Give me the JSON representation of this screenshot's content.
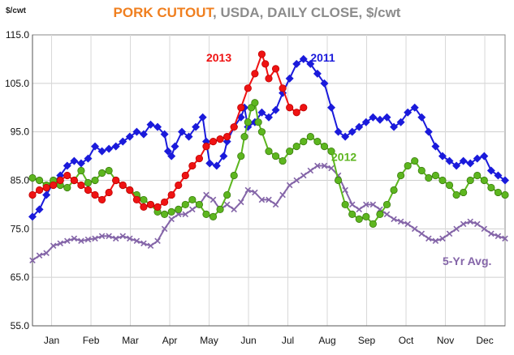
{
  "header": {
    "title_accent": "PORK CUTOUT",
    "title_rest": ", USDA, DAILY CLOSE, $/cwt",
    "unit": "$/cwt"
  },
  "chart_data": {
    "type": "line",
    "title": "PORK CUTOUT, USDA, DAILY CLOSE, $/cwt",
    "ylabel": "$/cwt",
    "xlabel": "",
    "ylim": [
      55.0,
      115.0
    ],
    "y_ticks": [
      "55.0",
      "65.0",
      "75.0",
      "85.0",
      "95.0",
      "105.0",
      "115.0"
    ],
    "x_ticks": [
      "Jan",
      "Feb",
      "Mar",
      "Apr",
      "May",
      "Jun",
      "Jul",
      "Aug",
      "Sep",
      "Oct",
      "Nov",
      "Dec"
    ],
    "grid": true,
    "series": [
      {
        "name": "2011",
        "color": "#1a1adb",
        "marker": "diamond",
        "label_at": [
          8.0,
          109.5
        ],
        "points": [
          [
            0.0,
            77.5
          ],
          [
            0.2,
            79
          ],
          [
            0.4,
            82
          ],
          [
            0.6,
            84.5
          ],
          [
            0.8,
            86
          ],
          [
            1.0,
            88
          ],
          [
            1.2,
            89
          ],
          [
            1.4,
            88.5
          ],
          [
            1.6,
            89.5
          ],
          [
            1.8,
            92
          ],
          [
            2.0,
            91
          ],
          [
            2.2,
            91.5
          ],
          [
            2.4,
            92
          ],
          [
            2.6,
            93
          ],
          [
            2.8,
            94
          ],
          [
            3.0,
            95
          ],
          [
            3.2,
            94.5
          ],
          [
            3.4,
            96.5
          ],
          [
            3.6,
            96
          ],
          [
            3.8,
            94.5
          ],
          [
            3.9,
            91
          ],
          [
            4.0,
            90
          ],
          [
            4.1,
            92
          ],
          [
            4.3,
            95
          ],
          [
            4.5,
            94
          ],
          [
            4.7,
            96
          ],
          [
            4.9,
            98
          ],
          [
            5.0,
            93
          ],
          [
            5.1,
            88.5
          ],
          [
            5.3,
            88
          ],
          [
            5.5,
            90
          ],
          [
            5.6,
            93
          ],
          [
            5.8,
            96
          ],
          [
            6.0,
            98
          ],
          [
            6.1,
            100
          ],
          [
            6.2,
            96
          ],
          [
            6.4,
            97
          ],
          [
            6.6,
            99
          ],
          [
            6.8,
            98
          ],
          [
            7.0,
            99.5
          ],
          [
            7.2,
            103
          ],
          [
            7.4,
            106
          ],
          [
            7.6,
            109
          ],
          [
            7.8,
            110
          ],
          [
            8.0,
            109
          ],
          [
            8.2,
            107
          ],
          [
            8.4,
            105
          ],
          [
            8.6,
            100
          ],
          [
            8.8,
            95
          ],
          [
            9.0,
            94
          ],
          [
            9.2,
            95
          ],
          [
            9.4,
            96
          ],
          [
            9.6,
            97
          ],
          [
            9.8,
            98
          ],
          [
            10.0,
            97.5
          ],
          [
            10.2,
            98
          ],
          [
            10.4,
            96
          ],
          [
            10.6,
            97
          ],
          [
            10.8,
            99
          ],
          [
            11.0,
            100
          ],
          [
            11.2,
            98
          ],
          [
            11.4,
            95
          ],
          [
            11.6,
            92
          ],
          [
            11.8,
            90
          ],
          [
            12.0,
            89
          ],
          [
            12.2,
            88
          ],
          [
            12.4,
            89
          ],
          [
            12.6,
            88.5
          ],
          [
            12.8,
            89.5
          ],
          [
            13.0,
            90
          ],
          [
            13.2,
            87
          ],
          [
            13.4,
            86
          ],
          [
            13.6,
            85
          ]
        ]
      },
      {
        "name": "2012",
        "color": "#5db61f",
        "marker": "circle",
        "label_at": [
          8.6,
          89.0
        ],
        "points": [
          [
            0.0,
            85.5
          ],
          [
            0.2,
            85
          ],
          [
            0.4,
            84
          ],
          [
            0.6,
            85
          ],
          [
            0.8,
            84
          ],
          [
            1.0,
            83.5
          ],
          [
            1.2,
            85
          ],
          [
            1.4,
            87
          ],
          [
            1.6,
            84.5
          ],
          [
            1.8,
            85
          ],
          [
            2.0,
            86.5
          ],
          [
            2.2,
            87
          ],
          [
            2.4,
            85
          ],
          [
            2.6,
            84
          ],
          [
            2.8,
            83
          ],
          [
            3.0,
            82
          ],
          [
            3.2,
            81
          ],
          [
            3.4,
            80
          ],
          [
            3.6,
            78.5
          ],
          [
            3.8,
            78
          ],
          [
            4.0,
            78.5
          ],
          [
            4.2,
            79
          ],
          [
            4.4,
            80
          ],
          [
            4.6,
            81
          ],
          [
            4.8,
            80
          ],
          [
            5.0,
            78
          ],
          [
            5.2,
            77.5
          ],
          [
            5.4,
            79
          ],
          [
            5.6,
            82
          ],
          [
            5.8,
            86
          ],
          [
            6.0,
            90
          ],
          [
            6.1,
            94
          ],
          [
            6.2,
            97
          ],
          [
            6.3,
            100
          ],
          [
            6.4,
            101
          ],
          [
            6.5,
            97
          ],
          [
            6.6,
            95
          ],
          [
            6.8,
            91
          ],
          [
            7.0,
            90
          ],
          [
            7.2,
            89
          ],
          [
            7.4,
            91
          ],
          [
            7.6,
            92
          ],
          [
            7.8,
            93
          ],
          [
            8.0,
            94
          ],
          [
            8.2,
            93
          ],
          [
            8.4,
            92
          ],
          [
            8.6,
            91
          ],
          [
            8.8,
            85
          ],
          [
            9.0,
            80
          ],
          [
            9.2,
            78
          ],
          [
            9.4,
            77
          ],
          [
            9.6,
            77.5
          ],
          [
            9.8,
            76
          ],
          [
            10.0,
            78
          ],
          [
            10.2,
            80
          ],
          [
            10.4,
            83
          ],
          [
            10.6,
            86
          ],
          [
            10.8,
            88
          ],
          [
            11.0,
            89
          ],
          [
            11.2,
            87
          ],
          [
            11.4,
            85.5
          ],
          [
            11.6,
            86
          ],
          [
            11.8,
            85
          ],
          [
            12.0,
            84
          ],
          [
            12.2,
            82
          ],
          [
            12.4,
            82.5
          ],
          [
            12.6,
            85
          ],
          [
            12.8,
            86
          ],
          [
            13.0,
            85
          ],
          [
            13.2,
            83.5
          ],
          [
            13.4,
            82.5
          ],
          [
            13.6,
            82
          ]
        ]
      },
      {
        "name": "2013",
        "color": "#ef1313",
        "marker": "circle",
        "label_at": [
          5.0,
          109.5
        ],
        "points": [
          [
            0.0,
            82
          ],
          [
            0.2,
            83
          ],
          [
            0.4,
            83.5
          ],
          [
            0.6,
            84
          ],
          [
            0.8,
            85
          ],
          [
            1.0,
            86
          ],
          [
            1.2,
            85
          ],
          [
            1.4,
            84
          ],
          [
            1.6,
            83
          ],
          [
            1.8,
            82
          ],
          [
            2.0,
            81
          ],
          [
            2.2,
            82.5
          ],
          [
            2.4,
            85
          ],
          [
            2.6,
            84
          ],
          [
            2.8,
            83
          ],
          [
            3.0,
            81
          ],
          [
            3.2,
            79.5
          ],
          [
            3.4,
            80
          ],
          [
            3.6,
            79.5
          ],
          [
            3.8,
            80.5
          ],
          [
            4.0,
            82
          ],
          [
            4.2,
            84
          ],
          [
            4.4,
            86
          ],
          [
            4.6,
            88
          ],
          [
            4.8,
            89.5
          ],
          [
            5.0,
            92
          ],
          [
            5.2,
            93
          ],
          [
            5.4,
            93.5
          ],
          [
            5.6,
            94
          ],
          [
            5.8,
            96
          ],
          [
            6.0,
            100
          ],
          [
            6.2,
            104
          ],
          [
            6.4,
            107
          ],
          [
            6.6,
            111
          ],
          [
            6.7,
            109
          ],
          [
            6.8,
            106
          ],
          [
            7.0,
            108
          ],
          [
            7.2,
            104
          ],
          [
            7.4,
            100
          ],
          [
            7.6,
            99
          ],
          [
            7.8,
            100
          ]
        ]
      },
      {
        "name": "5-Yr Avg.",
        "color": "#8465a8",
        "marker": "x",
        "label_at": [
          11.8,
          67.5
        ],
        "points": [
          [
            0.0,
            68.5
          ],
          [
            0.2,
            69.5
          ],
          [
            0.4,
            70
          ],
          [
            0.6,
            71.5
          ],
          [
            0.8,
            72
          ],
          [
            1.0,
            72.5
          ],
          [
            1.2,
            73
          ],
          [
            1.4,
            72.5
          ],
          [
            1.6,
            72.8
          ],
          [
            1.8,
            73
          ],
          [
            2.0,
            73.5
          ],
          [
            2.2,
            73.5
          ],
          [
            2.4,
            73
          ],
          [
            2.6,
            73.5
          ],
          [
            2.8,
            73
          ],
          [
            3.0,
            72.5
          ],
          [
            3.2,
            72
          ],
          [
            3.4,
            71.5
          ],
          [
            3.6,
            72.5
          ],
          [
            3.8,
            75
          ],
          [
            4.0,
            77
          ],
          [
            4.2,
            78
          ],
          [
            4.4,
            78
          ],
          [
            4.6,
            79
          ],
          [
            4.8,
            80
          ],
          [
            5.0,
            82
          ],
          [
            5.2,
            81
          ],
          [
            5.4,
            79
          ],
          [
            5.6,
            80
          ],
          [
            5.8,
            79
          ],
          [
            6.0,
            80.5
          ],
          [
            6.2,
            83
          ],
          [
            6.4,
            82.5
          ],
          [
            6.6,
            81
          ],
          [
            6.8,
            81
          ],
          [
            7.0,
            80
          ],
          [
            7.2,
            82
          ],
          [
            7.4,
            84
          ],
          [
            7.6,
            85
          ],
          [
            7.8,
            86
          ],
          [
            8.0,
            87
          ],
          [
            8.2,
            88
          ],
          [
            8.4,
            88
          ],
          [
            8.6,
            87.5
          ],
          [
            8.8,
            86
          ],
          [
            9.0,
            83
          ],
          [
            9.2,
            80
          ],
          [
            9.4,
            79
          ],
          [
            9.6,
            80
          ],
          [
            9.8,
            80
          ],
          [
            10.0,
            79
          ],
          [
            10.2,
            78
          ],
          [
            10.4,
            77
          ],
          [
            10.6,
            76.5
          ],
          [
            10.8,
            76
          ],
          [
            11.0,
            75
          ],
          [
            11.2,
            74
          ],
          [
            11.4,
            73
          ],
          [
            11.6,
            72.5
          ],
          [
            11.8,
            73
          ],
          [
            12.0,
            74
          ],
          [
            12.2,
            75
          ],
          [
            12.4,
            76
          ],
          [
            12.6,
            76.5
          ],
          [
            12.8,
            76
          ],
          [
            13.0,
            75
          ],
          [
            13.2,
            74
          ],
          [
            13.4,
            73.5
          ],
          [
            13.6,
            73
          ]
        ]
      }
    ]
  }
}
